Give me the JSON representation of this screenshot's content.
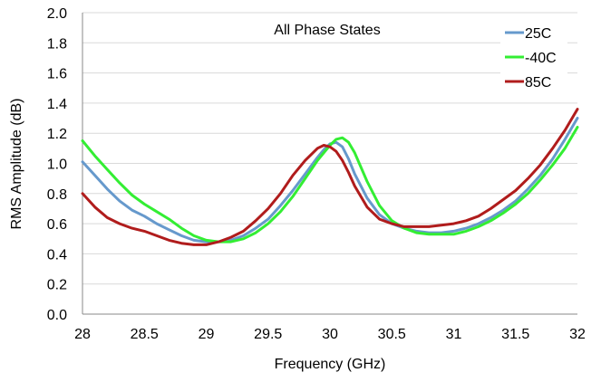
{
  "chart_data": {
    "type": "line",
    "title": "All Phase States",
    "xlabel": "Frequency (GHz)",
    "ylabel": "RMS Amplitude (dB)",
    "xlim": [
      28,
      32
    ],
    "ylim": [
      0,
      2.0
    ],
    "xticks": [
      28,
      28.5,
      29,
      29.5,
      30,
      30.5,
      31,
      31.5,
      32
    ],
    "xtick_labels": [
      "28",
      "28.5",
      "29",
      "29.5",
      "30",
      "30.5",
      "31",
      "31.5",
      "32"
    ],
    "yticks": [
      0,
      0.2,
      0.4,
      0.6,
      0.8,
      1.0,
      1.2,
      1.4,
      1.6,
      1.8,
      2.0
    ],
    "ytick_labels": [
      "0.0",
      "0.2",
      "0.4",
      "0.6",
      "0.8",
      "1.0",
      "1.2",
      "1.4",
      "1.6",
      "1.8",
      "2.0"
    ],
    "grid": "horizontal",
    "legend_position": "top-right",
    "series": [
      {
        "name": "25C",
        "color": "#6699cc",
        "x": [
          28.0,
          28.1,
          28.2,
          28.3,
          28.4,
          28.5,
          28.6,
          28.7,
          28.8,
          28.9,
          29.0,
          29.1,
          29.2,
          29.3,
          29.4,
          29.5,
          29.6,
          29.7,
          29.8,
          29.9,
          29.95,
          30.0,
          30.05,
          30.1,
          30.15,
          30.2,
          30.3,
          30.4,
          30.5,
          30.6,
          30.7,
          30.8,
          30.9,
          31.0,
          31.1,
          31.2,
          31.3,
          31.4,
          31.5,
          31.6,
          31.7,
          31.8,
          31.9,
          32.0
        ],
        "values": [
          1.01,
          0.92,
          0.83,
          0.75,
          0.69,
          0.65,
          0.6,
          0.56,
          0.52,
          0.49,
          0.48,
          0.48,
          0.49,
          0.52,
          0.57,
          0.63,
          0.72,
          0.82,
          0.93,
          1.04,
          1.09,
          1.13,
          1.14,
          1.11,
          1.03,
          0.93,
          0.77,
          0.66,
          0.6,
          0.57,
          0.55,
          0.54,
          0.54,
          0.55,
          0.57,
          0.6,
          0.64,
          0.69,
          0.75,
          0.83,
          0.92,
          1.03,
          1.16,
          1.3
        ]
      },
      {
        "name": "-40C",
        "color": "#33ee33",
        "x": [
          28.0,
          28.1,
          28.2,
          28.3,
          28.4,
          28.5,
          28.6,
          28.7,
          28.8,
          28.9,
          29.0,
          29.1,
          29.2,
          29.3,
          29.4,
          29.5,
          29.6,
          29.7,
          29.8,
          29.9,
          30.0,
          30.05,
          30.1,
          30.15,
          30.2,
          30.3,
          30.4,
          30.5,
          30.6,
          30.7,
          30.8,
          30.9,
          31.0,
          31.1,
          31.2,
          31.3,
          31.4,
          31.5,
          31.6,
          31.7,
          31.8,
          31.9,
          32.0
        ],
        "values": [
          1.15,
          1.05,
          0.96,
          0.87,
          0.79,
          0.73,
          0.68,
          0.63,
          0.57,
          0.52,
          0.49,
          0.48,
          0.48,
          0.5,
          0.54,
          0.6,
          0.68,
          0.78,
          0.9,
          1.02,
          1.12,
          1.16,
          1.17,
          1.14,
          1.07,
          0.88,
          0.72,
          0.62,
          0.57,
          0.54,
          0.53,
          0.53,
          0.53,
          0.55,
          0.58,
          0.62,
          0.67,
          0.73,
          0.8,
          0.89,
          0.99,
          1.1,
          1.24
        ]
      },
      {
        "name": "85C",
        "color": "#b01c1c",
        "x": [
          28.0,
          28.1,
          28.2,
          28.3,
          28.4,
          28.5,
          28.6,
          28.7,
          28.8,
          28.9,
          29.0,
          29.1,
          29.2,
          29.3,
          29.4,
          29.5,
          29.6,
          29.7,
          29.8,
          29.9,
          29.95,
          30.0,
          30.05,
          30.1,
          30.15,
          30.2,
          30.3,
          30.4,
          30.5,
          30.6,
          30.7,
          30.8,
          30.9,
          31.0,
          31.1,
          31.2,
          31.3,
          31.4,
          31.5,
          31.6,
          31.7,
          31.8,
          31.9,
          32.0
        ],
        "values": [
          0.8,
          0.71,
          0.64,
          0.6,
          0.57,
          0.55,
          0.52,
          0.49,
          0.47,
          0.46,
          0.46,
          0.48,
          0.51,
          0.55,
          0.62,
          0.7,
          0.8,
          0.92,
          1.02,
          1.1,
          1.12,
          1.11,
          1.08,
          1.02,
          0.94,
          0.85,
          0.71,
          0.63,
          0.6,
          0.58,
          0.58,
          0.58,
          0.59,
          0.6,
          0.62,
          0.65,
          0.7,
          0.76,
          0.82,
          0.9,
          0.99,
          1.1,
          1.22,
          1.36
        ]
      }
    ]
  }
}
